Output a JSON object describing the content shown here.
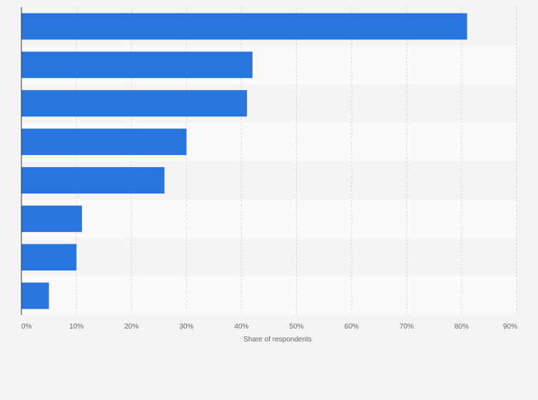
{
  "chart_data": {
    "type": "bar",
    "orientation": "horizontal",
    "title": "",
    "xlabel": "Share of respondents",
    "ylabel": "",
    "x_ticks": [
      "0%",
      "10%",
      "20%",
      "30%",
      "40%",
      "50%",
      "60%",
      "70%",
      "80%",
      "90%"
    ],
    "xlim": [
      0,
      90
    ],
    "categories": [
      "",
      "",
      "",
      "",
      "",
      "",
      "",
      ""
    ],
    "values": [
      81,
      42,
      41,
      30,
      26,
      11,
      10,
      5
    ],
    "unit": "%",
    "grid": "vertical dashed",
    "legend": "none",
    "colors": {
      "bar": "#2876dd",
      "page_background": "#f4f4f4",
      "band_light": "#fafafa",
      "band_dark": "#f4f4f4",
      "grid": "#d9d9d9",
      "axis": "#333333",
      "text": "#666666"
    }
  }
}
